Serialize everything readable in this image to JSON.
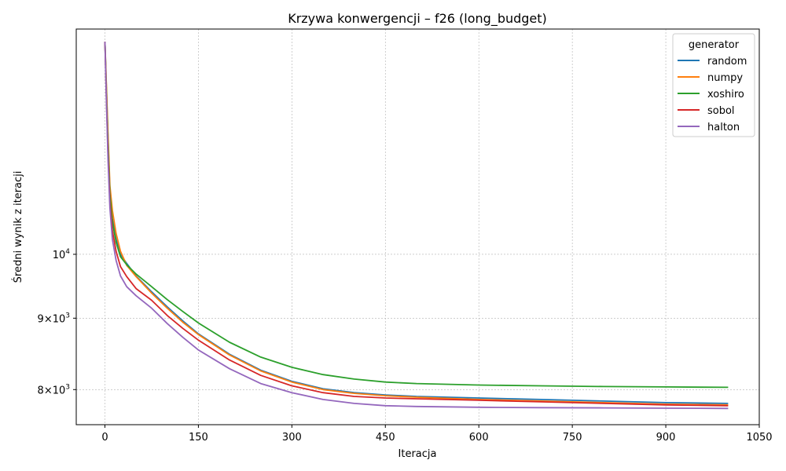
{
  "chart_data": {
    "type": "line",
    "title": "Krzywa konwergencji – f26 (long_budget)",
    "xlabel": "Iteracja",
    "ylabel": "Średni wynik z iteracji",
    "xlim": [
      -46,
      1050
    ],
    "ylim": [
      7550,
      14500
    ],
    "y_scale": "log",
    "grid": true,
    "x_ticks": [
      0,
      150,
      300,
      450,
      600,
      750,
      900,
      1050
    ],
    "x_tick_labels": [
      "0",
      "150",
      "300",
      "450",
      "600",
      "750",
      "900",
      "1050"
    ],
    "y_ticks": [
      {
        "value": 10000,
        "base": "10",
        "exp": "4"
      },
      {
        "value": 9000,
        "base": "9×10",
        "exp": "3"
      },
      {
        "value": 8000,
        "base": "8×10",
        "exp": "3"
      }
    ],
    "legend": {
      "title": "generator",
      "position": "upper right"
    },
    "series": [
      {
        "name": "random",
        "color": "#1f77b4",
        "points": [
          [
            0,
            14200
          ],
          [
            2,
            13300
          ],
          [
            5,
            12100
          ],
          [
            8,
            11100
          ],
          [
            12,
            10600
          ],
          [
            18,
            10250
          ],
          [
            25,
            10000
          ],
          [
            35,
            9850
          ],
          [
            50,
            9650
          ],
          [
            75,
            9400
          ],
          [
            100,
            9170
          ],
          [
            125,
            8960
          ],
          [
            150,
            8770
          ],
          [
            200,
            8480
          ],
          [
            250,
            8260
          ],
          [
            300,
            8110
          ],
          [
            350,
            8010
          ],
          [
            400,
            7960
          ],
          [
            450,
            7930
          ],
          [
            500,
            7910
          ],
          [
            600,
            7890
          ],
          [
            700,
            7870
          ],
          [
            800,
            7850
          ],
          [
            900,
            7830
          ],
          [
            1000,
            7820
          ]
        ]
      },
      {
        "name": "numpy",
        "color": "#ff7f0e",
        "points": [
          [
            0,
            14200
          ],
          [
            2,
            13350
          ],
          [
            5,
            12200
          ],
          [
            8,
            11200
          ],
          [
            12,
            10750
          ],
          [
            18,
            10350
          ],
          [
            25,
            10050
          ],
          [
            35,
            9820
          ],
          [
            50,
            9640
          ],
          [
            75,
            9380
          ],
          [
            100,
            9150
          ],
          [
            125,
            8940
          ],
          [
            150,
            8760
          ],
          [
            200,
            8470
          ],
          [
            250,
            8250
          ],
          [
            300,
            8100
          ],
          [
            350,
            8000
          ],
          [
            400,
            7950
          ],
          [
            450,
            7920
          ],
          [
            500,
            7900
          ],
          [
            600,
            7870
          ],
          [
            700,
            7850
          ],
          [
            800,
            7830
          ],
          [
            900,
            7810
          ],
          [
            1000,
            7800
          ]
        ]
      },
      {
        "name": "xoshiro",
        "color": "#2ca02c",
        "points": [
          [
            0,
            14200
          ],
          [
            2,
            13200
          ],
          [
            5,
            12000
          ],
          [
            8,
            11050
          ],
          [
            12,
            10550
          ],
          [
            18,
            10200
          ],
          [
            25,
            9960
          ],
          [
            35,
            9830
          ],
          [
            50,
            9680
          ],
          [
            75,
            9480
          ],
          [
            100,
            9280
          ],
          [
            125,
            9100
          ],
          [
            150,
            8930
          ],
          [
            200,
            8650
          ],
          [
            250,
            8440
          ],
          [
            300,
            8300
          ],
          [
            350,
            8200
          ],
          [
            400,
            8140
          ],
          [
            450,
            8100
          ],
          [
            500,
            8080
          ],
          [
            600,
            8060
          ],
          [
            700,
            8050
          ],
          [
            800,
            8040
          ],
          [
            900,
            8035
          ],
          [
            1000,
            8030
          ]
        ]
      },
      {
        "name": "sobol",
        "color": "#d62728",
        "points": [
          [
            0,
            14200
          ],
          [
            2,
            13100
          ],
          [
            5,
            11800
          ],
          [
            8,
            10900
          ],
          [
            12,
            10400
          ],
          [
            18,
            10050
          ],
          [
            25,
            9800
          ],
          [
            35,
            9640
          ],
          [
            50,
            9450
          ],
          [
            75,
            9270
          ],
          [
            100,
            9040
          ],
          [
            125,
            8850
          ],
          [
            150,
            8680
          ],
          [
            200,
            8400
          ],
          [
            250,
            8190
          ],
          [
            300,
            8050
          ],
          [
            350,
            7960
          ],
          [
            400,
            7910
          ],
          [
            450,
            7890
          ],
          [
            500,
            7880
          ],
          [
            600,
            7860
          ],
          [
            700,
            7840
          ],
          [
            800,
            7820
          ],
          [
            900,
            7800
          ],
          [
            1000,
            7790
          ]
        ]
      },
      {
        "name": "halton",
        "color": "#9467bd",
        "points": [
          [
            0,
            14200
          ],
          [
            2,
            13050
          ],
          [
            5,
            11700
          ],
          [
            8,
            10800
          ],
          [
            12,
            10250
          ],
          [
            18,
            9900
          ],
          [
            25,
            9650
          ],
          [
            35,
            9480
          ],
          [
            50,
            9340
          ],
          [
            75,
            9150
          ],
          [
            100,
            8920
          ],
          [
            125,
            8720
          ],
          [
            150,
            8540
          ],
          [
            200,
            8280
          ],
          [
            250,
            8080
          ],
          [
            300,
            7960
          ],
          [
            350,
            7870
          ],
          [
            400,
            7820
          ],
          [
            450,
            7790
          ],
          [
            500,
            7780
          ],
          [
            600,
            7770
          ],
          [
            700,
            7765
          ],
          [
            800,
            7762
          ],
          [
            900,
            7758
          ],
          [
            1000,
            7755
          ]
        ]
      }
    ]
  }
}
